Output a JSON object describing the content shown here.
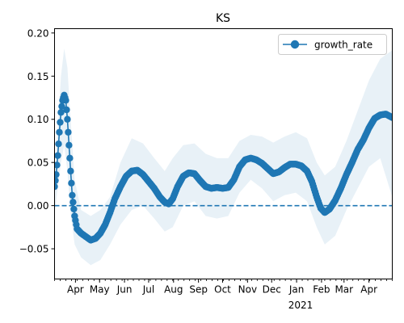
{
  "chart_data": {
    "type": "line",
    "title": "KS",
    "xlabel": "",
    "ylabel": "",
    "xlim": [
      "2020-03-06",
      "2021-04-30"
    ],
    "ylim": [
      -0.085,
      0.205
    ],
    "x_tick_labels": [
      "Apr",
      "May",
      "Jun",
      "Jul",
      "Aug",
      "Sep",
      "Oct",
      "Nov",
      "Dec",
      "Jan",
      "Feb",
      "Mar",
      "Apr"
    ],
    "x_tick_dates": [
      "2020-04-01",
      "2020-05-01",
      "2020-06-01",
      "2020-07-01",
      "2020-08-01",
      "2020-09-01",
      "2020-10-01",
      "2020-11-01",
      "2020-12-01",
      "2021-01-01",
      "2021-02-01",
      "2021-03-01",
      "2021-04-01"
    ],
    "x_secondary_label": "2021",
    "y_ticks": [
      -0.05,
      0.0,
      0.05,
      0.1,
      0.15,
      0.2
    ],
    "y_tick_labels": [
      "−0.05",
      "0.00",
      "0.05",
      "0.10",
      "0.15",
      "0.20"
    ],
    "reference_line": {
      "y": 0.0,
      "style": "dashed"
    },
    "legend": {
      "position": "top-right"
    },
    "grid": false,
    "series": [
      {
        "name": "growth_rate",
        "color": "#1f77b4",
        "marker": "circle",
        "points": [
          [
            "2020-03-06",
            0.022
          ],
          [
            "2020-03-08",
            0.036
          ],
          [
            "2020-03-10",
            0.058
          ],
          [
            "2020-03-12",
            0.085
          ],
          [
            "2020-03-14",
            0.108
          ],
          [
            "2020-03-16",
            0.122
          ],
          [
            "2020-03-18",
            0.128
          ],
          [
            "2020-03-20",
            0.122
          ],
          [
            "2020-03-22",
            0.1
          ],
          [
            "2020-03-24",
            0.07
          ],
          [
            "2020-03-26",
            0.04
          ],
          [
            "2020-03-28",
            0.012
          ],
          [
            "2020-03-31",
            -0.012
          ],
          [
            "2020-04-03",
            -0.027
          ],
          [
            "2020-04-08",
            -0.032
          ],
          [
            "2020-04-14",
            -0.036
          ],
          [
            "2020-04-20",
            -0.04
          ],
          [
            "2020-04-26",
            -0.038
          ],
          [
            "2020-05-02",
            -0.032
          ],
          [
            "2020-05-08",
            -0.022
          ],
          [
            "2020-05-14",
            -0.008
          ],
          [
            "2020-05-20",
            0.008
          ],
          [
            "2020-05-27",
            0.022
          ],
          [
            "2020-06-03",
            0.034
          ],
          [
            "2020-06-10",
            0.04
          ],
          [
            "2020-06-17",
            0.041
          ],
          [
            "2020-06-24",
            0.036
          ],
          [
            "2020-07-01",
            0.028
          ],
          [
            "2020-07-08",
            0.02
          ],
          [
            "2020-07-15",
            0.01
          ],
          [
            "2020-07-21",
            0.004
          ],
          [
            "2020-07-26",
            0.002
          ],
          [
            "2020-07-31",
            0.008
          ],
          [
            "2020-08-06",
            0.022
          ],
          [
            "2020-08-13",
            0.034
          ],
          [
            "2020-08-20",
            0.038
          ],
          [
            "2020-08-27",
            0.037
          ],
          [
            "2020-09-03",
            0.029
          ],
          [
            "2020-09-10",
            0.022
          ],
          [
            "2020-09-17",
            0.02
          ],
          [
            "2020-09-24",
            0.021
          ],
          [
            "2020-10-01",
            0.02
          ],
          [
            "2020-10-08",
            0.021
          ],
          [
            "2020-10-15",
            0.03
          ],
          [
            "2020-10-22",
            0.045
          ],
          [
            "2020-10-29",
            0.053
          ],
          [
            "2020-11-05",
            0.055
          ],
          [
            "2020-11-12",
            0.053
          ],
          [
            "2020-11-19",
            0.049
          ],
          [
            "2020-11-26",
            0.043
          ],
          [
            "2020-12-03",
            0.037
          ],
          [
            "2020-12-10",
            0.039
          ],
          [
            "2020-12-17",
            0.044
          ],
          [
            "2020-12-24",
            0.048
          ],
          [
            "2020-12-31",
            0.048
          ],
          [
            "2021-01-07",
            0.046
          ],
          [
            "2021-01-14",
            0.04
          ],
          [
            "2021-01-20",
            0.028
          ],
          [
            "2021-01-26",
            0.01
          ],
          [
            "2021-01-31",
            -0.003
          ],
          [
            "2021-02-05",
            -0.008
          ],
          [
            "2021-02-11",
            -0.004
          ],
          [
            "2021-02-18",
            0.006
          ],
          [
            "2021-02-25",
            0.02
          ],
          [
            "2021-03-04",
            0.036
          ],
          [
            "2021-03-11",
            0.05
          ],
          [
            "2021-03-18",
            0.065
          ],
          [
            "2021-03-25",
            0.076
          ],
          [
            "2021-04-01",
            0.09
          ],
          [
            "2021-04-08",
            0.101
          ],
          [
            "2021-04-15",
            0.105
          ],
          [
            "2021-04-22",
            0.106
          ],
          [
            "2021-04-30",
            0.102
          ]
        ]
      }
    ],
    "band": {
      "color": "#1f77b4",
      "opacity": 0.1,
      "points": [
        [
          "2020-03-06",
          -0.01,
          0.04
        ],
        [
          "2020-03-10",
          0.02,
          0.09
        ],
        [
          "2020-03-14",
          0.05,
          0.15
        ],
        [
          "2020-03-18",
          0.07,
          0.182
        ],
        [
          "2020-03-22",
          0.04,
          0.16
        ],
        [
          "2020-03-26",
          -0.01,
          0.1
        ],
        [
          "2020-03-31",
          -0.045,
          0.03
        ],
        [
          "2020-04-08",
          -0.06,
          -0.005
        ],
        [
          "2020-04-20",
          -0.069,
          -0.012
        ],
        [
          "2020-05-02",
          -0.063,
          -0.005
        ],
        [
          "2020-05-14",
          -0.045,
          0.01
        ],
        [
          "2020-05-27",
          -0.022,
          0.05
        ],
        [
          "2020-06-10",
          -0.005,
          0.078
        ],
        [
          "2020-06-24",
          0.0,
          0.072
        ],
        [
          "2020-07-08",
          -0.015,
          0.055
        ],
        [
          "2020-07-21",
          -0.03,
          0.04
        ],
        [
          "2020-07-31",
          -0.025,
          0.055
        ],
        [
          "2020-08-13",
          0.0,
          0.07
        ],
        [
          "2020-08-27",
          0.005,
          0.072
        ],
        [
          "2020-09-10",
          -0.012,
          0.06
        ],
        [
          "2020-09-24",
          -0.015,
          0.055
        ],
        [
          "2020-10-08",
          -0.012,
          0.055
        ],
        [
          "2020-10-22",
          0.015,
          0.075
        ],
        [
          "2020-11-05",
          0.03,
          0.082
        ],
        [
          "2020-11-19",
          0.02,
          0.08
        ],
        [
          "2020-12-03",
          0.005,
          0.073
        ],
        [
          "2020-12-17",
          0.012,
          0.08
        ],
        [
          "2020-12-31",
          0.015,
          0.085
        ],
        [
          "2021-01-14",
          0.005,
          0.078
        ],
        [
          "2021-01-26",
          -0.025,
          0.05
        ],
        [
          "2021-02-05",
          -0.045,
          0.035
        ],
        [
          "2021-02-18",
          -0.035,
          0.045
        ],
        [
          "2021-03-04",
          -0.005,
          0.075
        ],
        [
          "2021-03-18",
          0.02,
          0.11
        ],
        [
          "2021-04-01",
          0.045,
          0.145
        ],
        [
          "2021-04-15",
          0.055,
          0.17
        ],
        [
          "2021-04-30",
          0.01,
          0.18
        ]
      ]
    }
  }
}
